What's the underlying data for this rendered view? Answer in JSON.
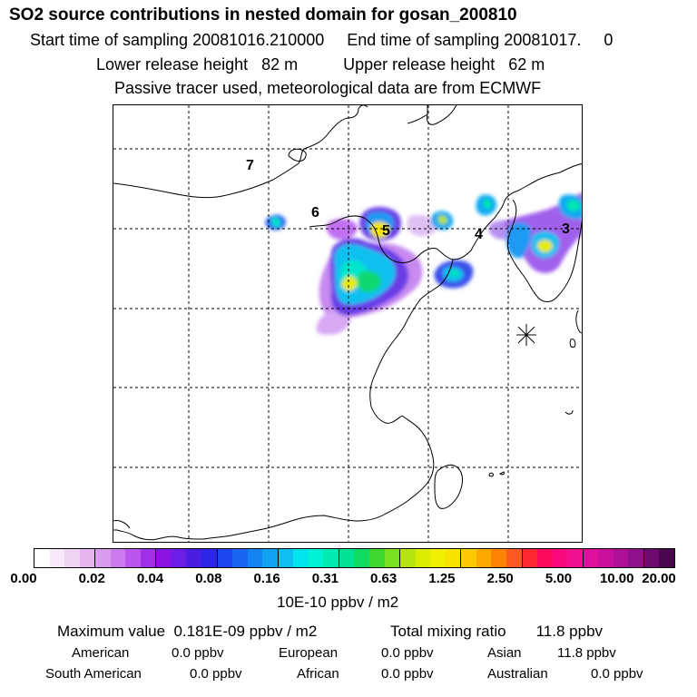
{
  "header": {
    "title": "SO2 source contributions in nested domain for gosan_200810",
    "line1": "Start time of sampling 20081016.210000     End time of sampling 20081017.     0",
    "line2": "Lower release height   82 m          Upper release height   62 m",
    "line3": "Passive tracer used, meteorological data are from ECMWF"
  },
  "map": {
    "region_labels": [
      "7",
      "6",
      "5",
      "4",
      "3"
    ],
    "grid": "dashed",
    "receptor_marker": "asterisk-icon"
  },
  "colorbar": {
    "colors": [
      "#ffffff",
      "#f6e8f8",
      "#f0d2f5",
      "#e6b5f0",
      "#d99cee",
      "#cc7af0",
      "#bb55ee",
      "#a030e8",
      "#8a14e4",
      "#6a1ee6",
      "#4a1ee0",
      "#2a28e6",
      "#1e46ee",
      "#1a66f4",
      "#1484f4",
      "#12a2f2",
      "#10bef0",
      "#00e4ec",
      "#00f2d4",
      "#00eab4",
      "#00e294",
      "#10da60",
      "#40d830",
      "#7ae020",
      "#b6e410",
      "#dcec00",
      "#f2ee00",
      "#fae200",
      "#fcc800",
      "#fca800",
      "#fc8400",
      "#fc5a20",
      "#fc2a30",
      "#fc0a5c",
      "#fa0a7c",
      "#f01090",
      "#e0109e",
      "#c8109c",
      "#ae1096",
      "#90108c",
      "#6c0a70",
      "#4a064c"
    ],
    "tick_labels": [
      "0.00",
      "0.02",
      "0.04",
      "0.08",
      "0.16",
      "0.31",
      "0.63",
      "1.25",
      "2.50",
      "5.00",
      "10.00",
      "20.00"
    ],
    "unit": "10E-10 ppbv / m2"
  },
  "summary": {
    "max_value": "Maximum value  0.181E-09 ppbv / m2",
    "total": "Total mixing ratio       11.8 ppbv",
    "contributions": [
      {
        "label": "American",
        "value": "0.0 ppbv"
      },
      {
        "label": "European",
        "value": "0.0 ppbv"
      },
      {
        "label": "Asian",
        "value": "11.8 ppbv"
      },
      {
        "label": "South American",
        "value": "0.0 ppbv"
      },
      {
        "label": "African",
        "value": "0.0 ppbv"
      },
      {
        "label": "Australian",
        "value": "0.0 ppbv"
      }
    ]
  }
}
